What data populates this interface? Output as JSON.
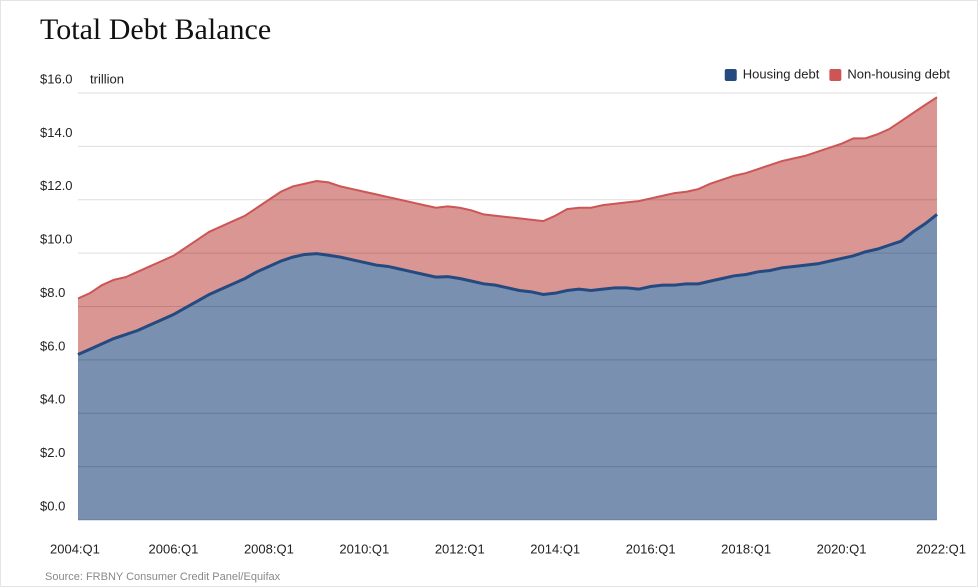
{
  "chart_data": {
    "type": "stacked_area",
    "title": "Total Debt Balance",
    "y_unit": "trillion",
    "source": "Source: FRBNY Consumer Credit Panel/Equifax",
    "categories": [
      "2004:Q1",
      null,
      null,
      null,
      null,
      null,
      null,
      null,
      "2006:Q1",
      null,
      null,
      null,
      null,
      null,
      null,
      null,
      "2008:Q1",
      null,
      null,
      null,
      null,
      null,
      null,
      null,
      "2010:Q1",
      null,
      null,
      null,
      null,
      null,
      null,
      null,
      "2012:Q1",
      null,
      null,
      null,
      null,
      null,
      null,
      null,
      "2014:Q1",
      null,
      null,
      null,
      null,
      null,
      null,
      null,
      "2016:Q1",
      null,
      null,
      null,
      null,
      null,
      null,
      null,
      "2018:Q1",
      null,
      null,
      null,
      null,
      null,
      null,
      null,
      "2020:Q1",
      null,
      null,
      null,
      null,
      null,
      null,
      null,
      "2022:Q1"
    ],
    "series": [
      {
        "name": "Housing debt",
        "color": "#244a80",
        "fill": "#7990b0",
        "values": [
          6.2,
          6.4,
          6.6,
          6.8,
          6.95,
          7.1,
          7.3,
          7.5,
          7.7,
          7.95,
          8.2,
          8.45,
          8.65,
          8.85,
          9.05,
          9.3,
          9.5,
          9.7,
          9.85,
          9.95,
          9.98,
          9.92,
          9.85,
          9.75,
          9.65,
          9.55,
          9.5,
          9.4,
          9.3,
          9.2,
          9.1,
          9.12,
          9.05,
          8.95,
          8.85,
          8.8,
          8.7,
          8.6,
          8.55,
          8.45,
          8.5,
          8.6,
          8.65,
          8.6,
          8.65,
          8.7,
          8.7,
          8.65,
          8.75,
          8.8,
          8.8,
          8.85,
          8.85,
          8.95,
          9.05,
          9.15,
          9.2,
          9.3,
          9.35,
          9.45,
          9.5,
          9.55,
          9.6,
          9.7,
          9.8,
          9.9,
          10.05,
          10.15,
          10.3,
          10.45,
          10.8,
          11.1,
          11.45
        ]
      },
      {
        "name": "Non-housing debt",
        "color": "#cd5555",
        "fill": "#da9693",
        "values": [
          2.1,
          2.1,
          2.2,
          2.2,
          2.15,
          2.2,
          2.2,
          2.2,
          2.2,
          2.25,
          2.3,
          2.35,
          2.35,
          2.35,
          2.35,
          2.4,
          2.5,
          2.6,
          2.65,
          2.65,
          2.72,
          2.73,
          2.65,
          2.65,
          2.65,
          2.65,
          2.6,
          2.6,
          2.6,
          2.6,
          2.6,
          2.63,
          2.65,
          2.65,
          2.6,
          2.6,
          2.65,
          2.7,
          2.7,
          2.75,
          2.9,
          3.05,
          3.05,
          3.1,
          3.15,
          3.15,
          3.2,
          3.3,
          3.3,
          3.35,
          3.45,
          3.45,
          3.55,
          3.65,
          3.7,
          3.75,
          3.8,
          3.85,
          3.95,
          4.0,
          4.05,
          4.1,
          4.2,
          4.25,
          4.3,
          4.4,
          4.25,
          4.3,
          4.35,
          4.5,
          4.45,
          4.45,
          4.39
        ]
      }
    ],
    "ylim": [
      0,
      16
    ],
    "yticks": [
      {
        "value": 0,
        "label": "$0.0"
      },
      {
        "value": 2,
        "label": "$2.0"
      },
      {
        "value": 4,
        "label": "$4.0"
      },
      {
        "value": 6,
        "label": "$6.0"
      },
      {
        "value": 8,
        "label": "$8.0"
      },
      {
        "value": 10,
        "label": "$10.0"
      },
      {
        "value": 12,
        "label": "$12.0"
      },
      {
        "value": 14,
        "label": "$14.0"
      },
      {
        "value": 16,
        "label": "$16.0"
      }
    ],
    "grid": true,
    "legend": "top-right"
  }
}
